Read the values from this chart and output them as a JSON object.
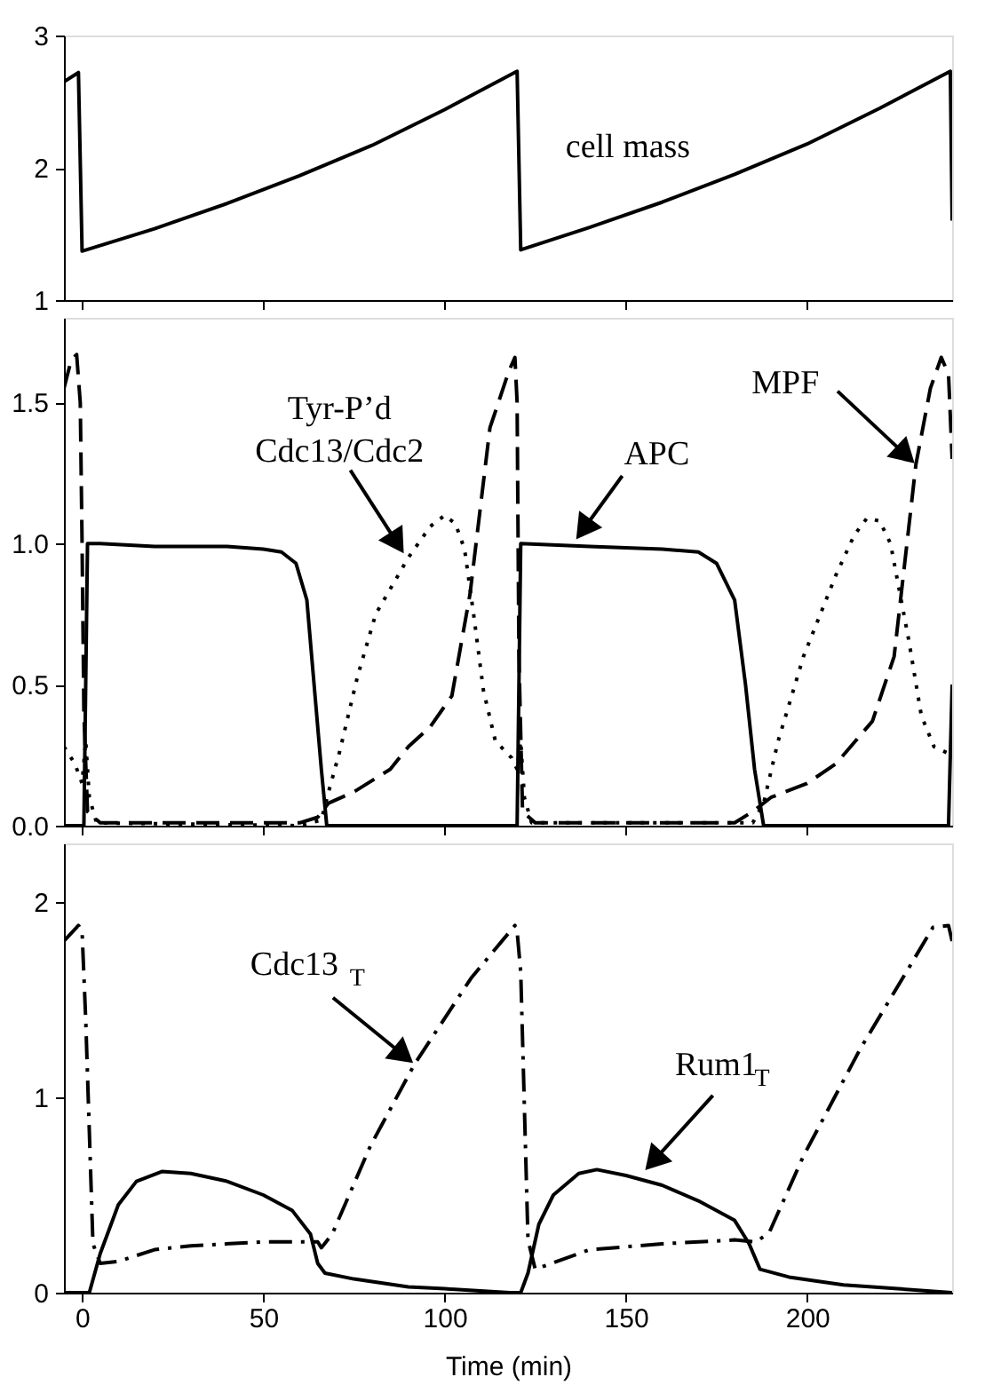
{
  "chart_data": [
    {
      "type": "line",
      "xlim": [
        -5,
        240
      ],
      "xticks": [
        0,
        50,
        100,
        150,
        200
      ],
      "ylim": [
        1,
        3
      ],
      "yticks": [
        1,
        2,
        3
      ],
      "grid": false,
      "tick_labels": "y",
      "series": [
        {
          "color": "#000000",
          "line_style": "solid",
          "x": [
            -5,
            -1,
            0,
            20,
            40,
            60,
            80,
            100,
            120,
            121,
            140,
            160,
            180,
            200,
            220,
            239.5,
            240
          ],
          "values": [
            2.65,
            2.72,
            1.37,
            1.54,
            1.73,
            1.94,
            2.17,
            2.44,
            2.73,
            1.38,
            1.55,
            1.74,
            1.95,
            2.18,
            2.45,
            2.73,
            1.6
          ]
        }
      ],
      "annotations": [
        "cell mass"
      ]
    },
    {
      "type": "line",
      "xlim": [
        -5,
        240
      ],
      "xticks": [
        0,
        50,
        100,
        150,
        200
      ],
      "ylim": [
        0,
        1.8
      ],
      "yticks": [
        {
          "value": 0,
          "label": "0.0"
        },
        {
          "value": 0.5,
          "label": "0.5"
        },
        {
          "value": 1,
          "label": "1.0"
        },
        {
          "value": 1.5,
          "label": "1.5"
        }
      ],
      "grid": false,
      "tick_labels": "y",
      "series": [
        {
          "color": "#000000",
          "line_style": "solid",
          "x": [
            -5,
            0.5,
            1.5,
            5,
            20,
            40,
            50,
            55,
            59,
            62,
            64,
            66,
            67.5,
            120,
            121,
            140,
            160,
            170,
            175,
            180,
            183,
            185.5,
            188,
            239,
            240
          ],
          "values": [
            0,
            0,
            1.0,
            1.0,
            0.99,
            0.99,
            0.98,
            0.97,
            0.93,
            0.8,
            0.5,
            0.2,
            0,
            0,
            1.0,
            0.99,
            0.98,
            0.97,
            0.93,
            0.8,
            0.5,
            0.2,
            0,
            0,
            0.5
          ]
        },
        {
          "color": "#000000",
          "line_style": "dashed",
          "x": [
            -5,
            -3,
            -1.5,
            -0.5,
            0,
            0.5,
            1.5,
            5,
            60,
            65,
            68,
            75,
            85,
            90,
            96,
            102,
            107,
            112.5,
            117.7,
            119.4,
            120,
            120.5,
            121.5,
            125,
            180,
            185,
            190,
            200,
            208,
            218,
            224,
            230,
            234,
            237,
            239,
            240
          ],
          "values": [
            1.55,
            1.65,
            1.67,
            1.5,
            1.0,
            0.4,
            0.05,
            0.01,
            0.01,
            0.03,
            0.08,
            0.12,
            0.2,
            0.28,
            0.35,
            0.46,
            0.82,
            1.41,
            1.61,
            1.66,
            1.5,
            0.6,
            0.05,
            0.01,
            0.01,
            0.05,
            0.1,
            0.15,
            0.22,
            0.37,
            0.6,
            1.28,
            1.55,
            1.66,
            1.6,
            1.3
          ]
        },
        {
          "color": "#000000",
          "line_style": "dotted",
          "x": [
            -5,
            -2,
            0,
            1,
            2,
            4,
            60,
            66,
            68,
            71,
            76,
            81,
            90,
            96,
            100,
            103,
            105.5,
            108,
            110.7,
            114,
            118.5,
            120,
            121,
            122,
            124,
            185,
            188,
            192,
            199,
            208,
            213,
            216.5,
            220,
            223,
            228,
            231.5,
            235,
            240
          ],
          "values": [
            0.28,
            0.22,
            0.15,
            0.3,
            0.1,
            0.01,
            0,
            0.02,
            0.12,
            0.26,
            0.53,
            0.75,
            0.95,
            1.06,
            1.1,
            1.07,
            0.98,
            0.75,
            0.48,
            0.3,
            0.24,
            0.2,
            0.3,
            0.1,
            0.01,
            0.01,
            0.08,
            0.3,
            0.6,
            0.89,
            1.03,
            1.09,
            1.08,
            1.0,
            0.66,
            0.39,
            0.28,
            0.25
          ]
        }
      ],
      "annotations": [
        {
          "text": "Tyr-P’d\nCdc13/Cdc2",
          "x": 89,
          "y": 0.96
        },
        {
          "text": "APC",
          "x": 136,
          "y": 1.01
        },
        {
          "text": "MPF",
          "x": 230,
          "y": 1.28
        }
      ]
    },
    {
      "type": "line",
      "xlim": [
        -5,
        240
      ],
      "xticks": [
        0,
        50,
        100,
        150,
        200
      ],
      "ylim": [
        0,
        2.3
      ],
      "yticks": [
        0,
        1,
        2
      ],
      "grid": false,
      "xlabel": "Time (min)",
      "series": [
        {
          "color": "#000000",
          "line_style": "dashdot",
          "x": [
            -5,
            -1,
            0,
            1,
            3,
            5,
            10,
            20,
            30,
            50,
            65,
            66,
            69,
            79.5,
            91.7,
            107.3,
            119.4,
            120,
            121,
            123,
            125,
            140,
            160,
            180,
            186,
            189.6,
            199,
            214.7,
            228.6,
            234.7,
            239,
            240
          ],
          "values": [
            1.8,
            1.88,
            1.85,
            1.4,
            0.25,
            0.15,
            0.16,
            0.22,
            0.24,
            0.26,
            0.26,
            0.23,
            0.3,
            0.75,
            1.17,
            1.61,
            1.88,
            1.85,
            1.64,
            0.27,
            0.12,
            0.22,
            0.25,
            0.27,
            0.26,
            0.31,
            0.7,
            1.25,
            1.68,
            1.87,
            1.88,
            1.8
          ]
        },
        {
          "color": "#000000",
          "line_style": "solid",
          "x": [
            -5,
            2,
            5,
            10,
            15,
            22,
            30,
            40,
            50,
            58,
            63,
            65,
            67,
            75,
            90,
            100,
            118,
            121,
            123,
            126,
            130,
            137,
            142,
            150,
            160,
            170,
            180,
            184,
            187,
            195,
            210,
            225,
            240
          ],
          "values": [
            0,
            0,
            0.2,
            0.45,
            0.57,
            0.62,
            0.61,
            0.57,
            0.5,
            0.42,
            0.3,
            0.15,
            0.1,
            0.07,
            0.03,
            0.02,
            0,
            0,
            0.1,
            0.35,
            0.5,
            0.61,
            0.63,
            0.6,
            0.55,
            0.47,
            0.37,
            0.25,
            0.12,
            0.08,
            0.04,
            0.02,
            0
          ]
        }
      ],
      "annotations": [
        {
          "text": "Cdc13$_{T}$",
          "x": 91.7,
          "y": 1.17
        },
        {
          "text": "Rum1$_{T}$",
          "x": 155,
          "y": 0.62
        }
      ]
    }
  ]
}
